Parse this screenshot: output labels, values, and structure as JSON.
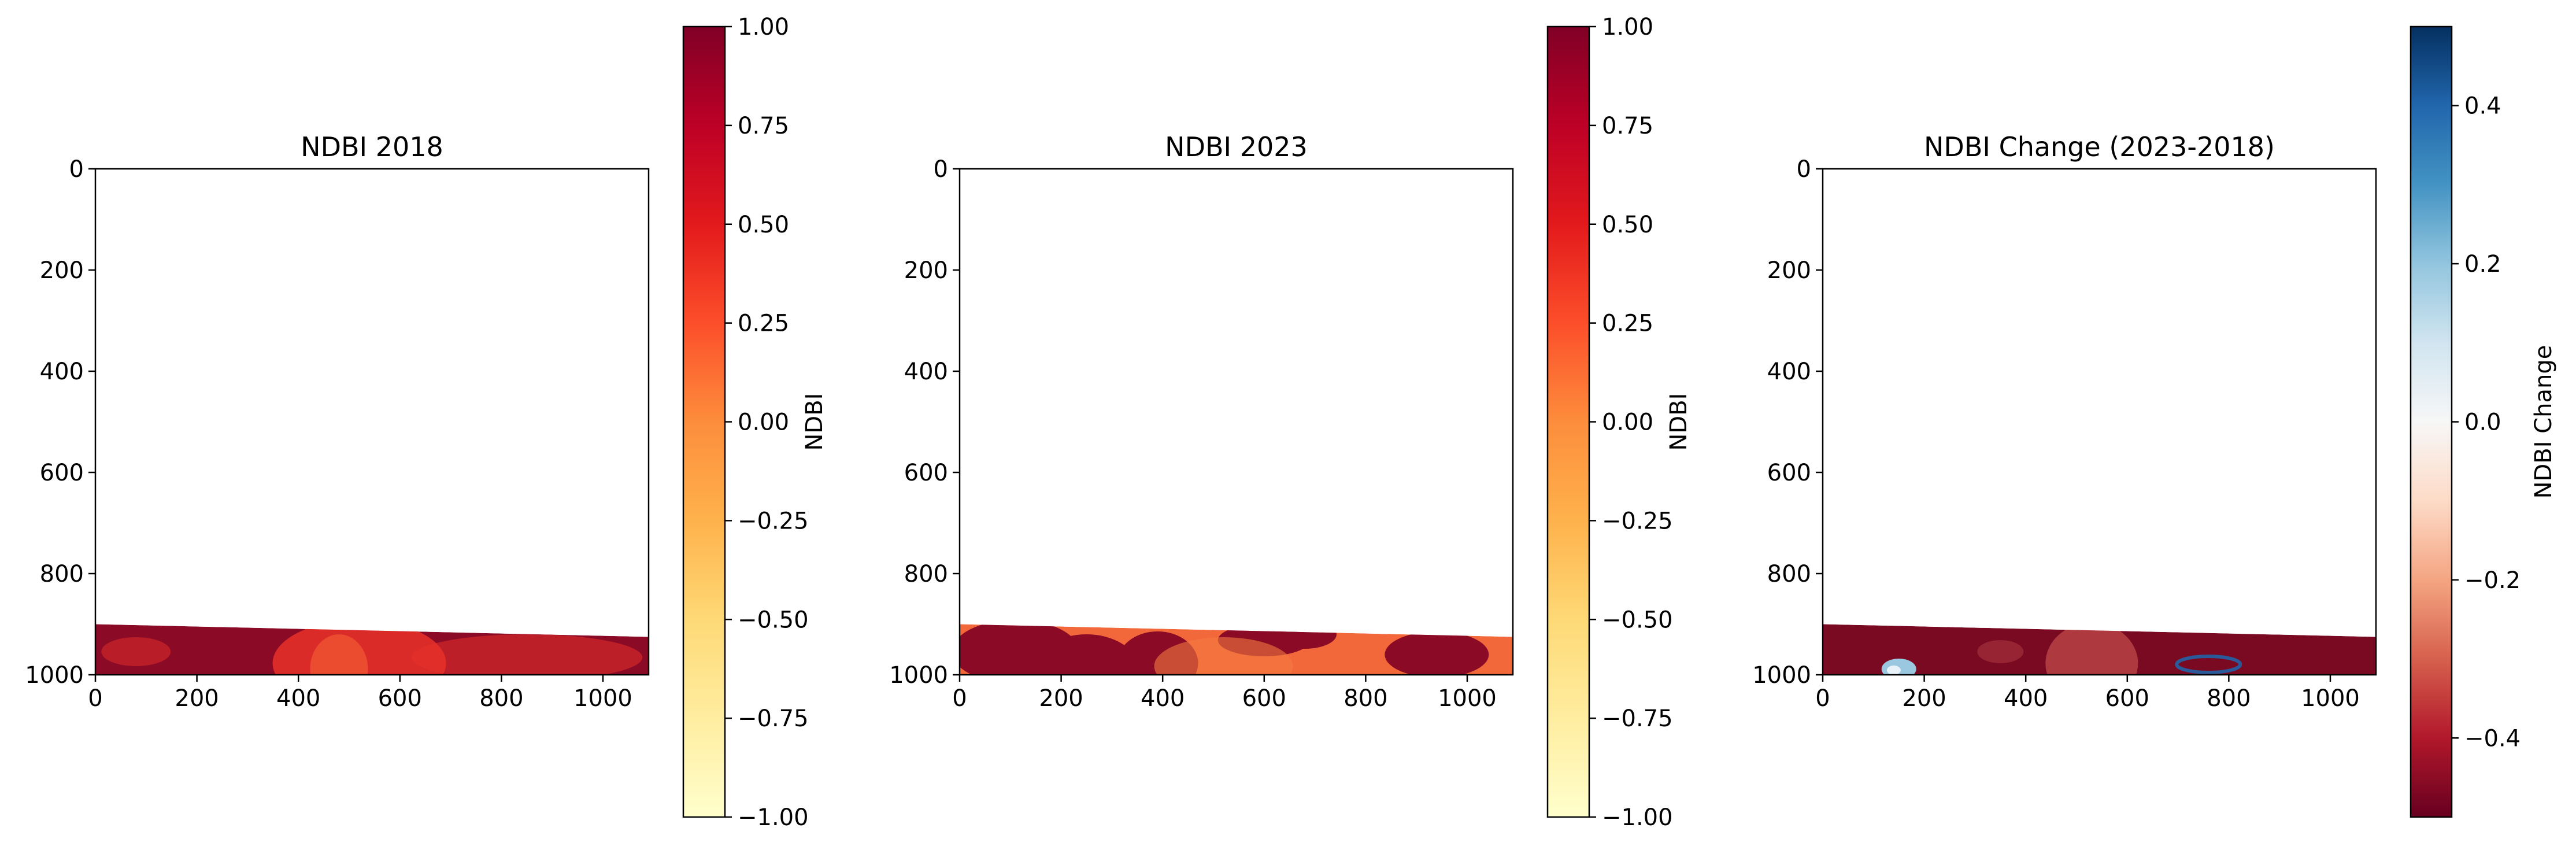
{
  "chart_data": [
    {
      "type": "heatmap",
      "title": "NDBI 2018",
      "x_ticks": [
        0,
        200,
        400,
        600,
        800,
        1000
      ],
      "y_ticks": [
        0,
        200,
        400,
        600,
        800,
        1000
      ],
      "xlim": [
        0,
        1090
      ],
      "ylim": [
        1000,
        0
      ],
      "colormap": "YlOrRd",
      "colorbar": {
        "label": "NDBI",
        "range": [
          -1.0,
          1.0
        ],
        "ticks": [
          "1.00",
          "0.75",
          "0.50",
          "0.25",
          "0.00",
          "−0.25",
          "−0.50",
          "−0.75",
          "−1.00"
        ],
        "tick_values": [
          1.0,
          0.75,
          0.5,
          0.25,
          0.0,
          -0.25,
          -0.5,
          -0.75,
          -1.0
        ],
        "colors": [
          "#ffffcc",
          "#ffeda0",
          "#fed976",
          "#feb24c",
          "#fd8d3c",
          "#fc4e2a",
          "#e31a1c",
          "#bd0026",
          "#800026"
        ]
      },
      "data_region": {
        "rows_left": [
          900,
          1000
        ],
        "rows_right": [
          925,
          1000
        ]
      },
      "dominant_color": "#8b0a26",
      "feature_color": "#e8312a",
      "feature_color_2": "#f25a30"
    },
    {
      "type": "heatmap",
      "title": "NDBI 2023",
      "x_ticks": [
        0,
        200,
        400,
        600,
        800,
        1000
      ],
      "y_ticks": [
        0,
        200,
        400,
        600,
        800,
        1000
      ],
      "xlim": [
        0,
        1090
      ],
      "ylim": [
        1000,
        0
      ],
      "colormap": "YlOrRd",
      "colorbar": {
        "label": "NDBI",
        "range": [
          -1.0,
          1.0
        ],
        "ticks": [
          "1.00",
          "0.75",
          "0.50",
          "0.25",
          "0.00",
          "−0.25",
          "−0.50",
          "−0.75",
          "−1.00"
        ],
        "tick_values": [
          1.0,
          0.75,
          0.5,
          0.25,
          0.0,
          -0.25,
          -0.5,
          -0.75,
          -1.0
        ],
        "colors": [
          "#ffffcc",
          "#ffeda0",
          "#fed976",
          "#feb24c",
          "#fd8d3c",
          "#fc4e2a",
          "#e31a1c",
          "#bd0026",
          "#800026"
        ]
      },
      "data_region": {
        "rows_left": [
          900,
          1000
        ],
        "rows_right": [
          925,
          1000
        ]
      },
      "dominant_color": "#f2683a",
      "feature_color": "#8b0a26",
      "feature_color_2": "#f47a3f"
    },
    {
      "type": "heatmap",
      "title": "NDBI Change (2023-2018)",
      "x_ticks": [
        0,
        200,
        400,
        600,
        800,
        1000
      ],
      "y_ticks": [
        0,
        200,
        400,
        600,
        800,
        1000
      ],
      "xlim": [
        0,
        1090
      ],
      "ylim": [
        1000,
        0
      ],
      "colormap": "RdBu",
      "colorbar": {
        "label": "NDBI Change",
        "range": [
          -0.5,
          0.5
        ],
        "ticks": [
          "0.4",
          "0.2",
          "0.0",
          "−0.2",
          "−0.4"
        ],
        "tick_values": [
          0.4,
          0.2,
          0.0,
          -0.2,
          -0.4
        ],
        "colors": [
          "#67001f",
          "#b2182b",
          "#d6604d",
          "#f4a582",
          "#fddbc7",
          "#f7f7f7",
          "#d1e5f0",
          "#92c5de",
          "#4393c3",
          "#2166ac",
          "#053061"
        ]
      },
      "data_region": {
        "rows_left": [
          900,
          1000
        ],
        "rows_right": [
          925,
          1000
        ]
      },
      "dominant_color": "#7a0a22",
      "feature_color": "#c04a4a",
      "feature_color_2": "#2a5a9a"
    }
  ]
}
